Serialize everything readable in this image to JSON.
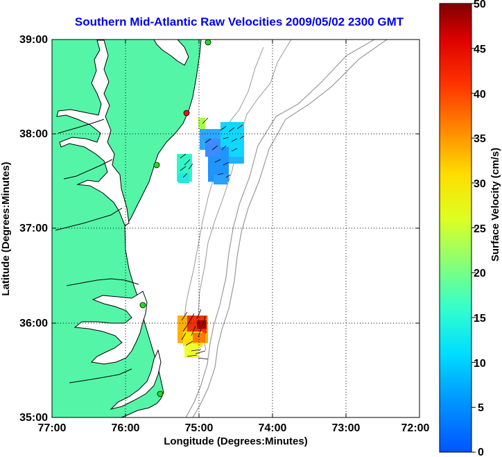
{
  "title": "Southern Mid-Atlantic Raw Velocities 2009/05/02 2300 GMT",
  "x_axis": {
    "label": "Longitude (Degrees:Minutes)",
    "ticks": [
      "77:00",
      "76:00",
      "75:00",
      "74:00",
      "73:00",
      "72:00"
    ]
  },
  "y_axis": {
    "label": "Latitude (Degrees:Minutes)",
    "ticks": [
      "39:00",
      "38:00",
      "37:00",
      "36:00",
      "35:00"
    ]
  },
  "colorbar": {
    "label": "Surface Velocity (cm/s)",
    "ticks": [
      "50",
      "45",
      "40",
      "35",
      "30",
      "25",
      "20",
      "15",
      "10",
      "5",
      "0"
    ],
    "range": [
      0,
      50
    ]
  },
  "colors": {
    "land": "#55f5a8",
    "water": "#ffffff",
    "coastline": "#000000",
    "bathymetry": "#999999",
    "title": "#0000ee",
    "station_active": "#22dd22",
    "station_inactive": "#ee1111"
  },
  "grid": "dotted"
}
